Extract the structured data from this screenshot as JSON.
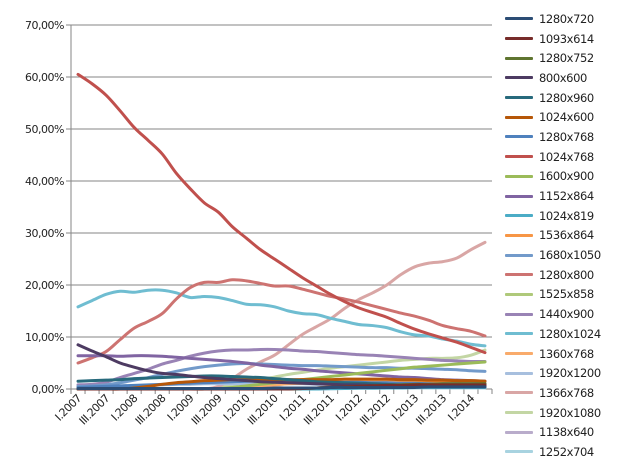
{
  "chart_data": {
    "type": "line",
    "title": "",
    "xlabel": "",
    "ylabel": "",
    "ylim": [
      0,
      70
    ],
    "y_ticks": [
      "0,00%",
      "10,00%",
      "20,00%",
      "30,00%",
      "40,00%",
      "50,00%",
      "60,00%",
      "70,00%"
    ],
    "grid": true,
    "legend": "right",
    "x_tick_labels": [
      "I.2007",
      "III.2007",
      "I.2008",
      "III.2008",
      "I.2009",
      "III.2009",
      "I.2010",
      "III.2010",
      "I.2011",
      "III.2011",
      "I.2012",
      "III.2012",
      "I.2013",
      "III.2013",
      "I.2014"
    ],
    "categories": [
      "I.2007",
      "II.2007",
      "III.2007",
      "IV.2007",
      "I.2008",
      "II.2008",
      "III.2008",
      "IV.2008",
      "I.2009",
      "II.2009",
      "III.2009",
      "IV.2009",
      "I.2010",
      "II.2010",
      "III.2010",
      "IV.2010",
      "I.2011",
      "II.2011",
      "III.2011",
      "IV.2011",
      "I.2012",
      "II.2012",
      "III.2012",
      "IV.2012",
      "I.2013",
      "II.2013",
      "III.2013",
      "IV.2013",
      "I.2014",
      "II.2014"
    ],
    "series": [
      {
        "name": "1280x720",
        "color": "#2C4D75",
        "values": [
          0.1,
          0.1,
          0.1,
          0.1,
          0.1,
          0.1,
          0.1,
          0.1,
          0.1,
          0.1,
          0.1,
          0.1,
          0.1,
          0.1,
          0.2,
          0.2,
          0.2,
          0.2,
          0.3,
          0.3,
          0.3,
          0.3,
          0.3,
          0.3,
          0.3,
          0.4,
          0.4,
          0.4,
          0.4,
          0.4
        ]
      },
      {
        "name": "1093x614",
        "color": "#772C2A",
        "values": [
          0,
          0,
          0,
          0,
          0,
          0,
          0,
          0,
          0,
          0,
          0,
          0,
          0,
          0,
          0,
          0,
          0.1,
          0.2,
          0.3,
          0.4,
          0.5,
          0.6,
          0.7,
          0.7,
          0.8,
          0.8,
          0.8,
          0.8,
          0.8,
          0.8
        ]
      },
      {
        "name": "1280x752",
        "color": "#5F7530",
        "values": [
          0,
          0,
          0,
          0,
          0,
          0,
          0,
          0,
          0,
          0,
          0,
          0,
          0,
          0,
          0,
          0,
          0.1,
          0.2,
          0.3,
          0.4,
          0.5,
          0.6,
          0.7,
          0.8,
          0.9,
          0.9,
          1.0,
          1.0,
          1.0,
          1.0
        ]
      },
      {
        "name": "800x600",
        "color": "#4D3B62",
        "values": [
          8.5,
          7.3,
          6.2,
          5.0,
          4.2,
          3.5,
          3.0,
          2.8,
          2.5,
          2.2,
          2.0,
          1.8,
          1.6,
          1.4,
          1.3,
          1.2,
          1.1,
          1.0,
          0.9,
          0.8,
          0.8,
          0.7,
          0.7,
          0.6,
          0.6,
          0.6,
          0.5,
          0.5,
          0.5,
          0.5
        ]
      },
      {
        "name": "1280x960",
        "color": "#276A7C",
        "values": [
          1.5,
          1.6,
          1.7,
          1.8,
          2.0,
          2.1,
          2.2,
          2.3,
          2.4,
          2.5,
          2.5,
          2.4,
          2.3,
          2.2,
          2.0,
          1.8,
          1.6,
          1.4,
          1.3,
          1.2,
          1.1,
          1.0,
          0.9,
          0.8,
          0.8,
          0.7,
          0.7,
          0.6,
          0.6,
          0.6
        ]
      },
      {
        "name": "1024x600",
        "color": "#B65708",
        "values": [
          0,
          0,
          0,
          0,
          0.2,
          0.5,
          0.9,
          1.2,
          1.4,
          1.6,
          1.7,
          1.8,
          1.8,
          1.8,
          1.8,
          1.8,
          1.8,
          1.8,
          1.8,
          1.9,
          1.9,
          1.9,
          1.9,
          1.8,
          1.8,
          1.7,
          1.7,
          1.6,
          1.6,
          1.5
        ]
      },
      {
        "name": "1280x768",
        "color": "#4F81BD",
        "values": [
          0.3,
          0.4,
          0.5,
          0.6,
          0.7,
          0.8,
          0.9,
          1.0,
          1.1,
          1.2,
          1.3,
          1.4,
          1.5,
          1.5,
          1.5,
          1.5,
          1.5,
          1.4,
          1.4,
          1.3,
          1.3,
          1.2,
          1.2,
          1.1,
          1.1,
          1.0,
          1.0,
          1.0,
          1.0,
          1.0
        ]
      },
      {
        "name": "1024x768",
        "color": "#C0504D",
        "values": [
          60.5,
          58.7,
          56.5,
          53.5,
          50.3,
          47.8,
          45.2,
          41.5,
          38.5,
          35.8,
          34.0,
          31.2,
          29.0,
          26.8,
          25.0,
          23.2,
          21.4,
          19.8,
          18.2,
          16.8,
          15.6,
          14.7,
          13.8,
          12.6,
          11.5,
          10.6,
          9.8,
          9.0,
          8.0,
          7.0
        ]
      },
      {
        "name": "1600x900",
        "color": "#9BBB59",
        "values": [
          0,
          0,
          0,
          0,
          0,
          0,
          0,
          0,
          0,
          0,
          0.1,
          0.3,
          0.6,
          0.9,
          1.2,
          1.5,
          1.8,
          2.1,
          2.4,
          2.7,
          3.0,
          3.3,
          3.6,
          3.9,
          4.2,
          4.4,
          4.6,
          4.8,
          5.0,
          5.2
        ]
      },
      {
        "name": "1152x864",
        "color": "#8064A2",
        "values": [
          6.4,
          6.4,
          6.4,
          6.3,
          6.4,
          6.4,
          6.3,
          6.1,
          5.9,
          5.7,
          5.5,
          5.3,
          5.0,
          4.6,
          4.3,
          4.0,
          3.8,
          3.5,
          3.3,
          3.1,
          2.9,
          2.7,
          2.5,
          2.3,
          2.2,
          2.0,
          1.8,
          1.7,
          1.6,
          1.5
        ]
      },
      {
        "name": "1024x819",
        "color": "#4BACC6",
        "values": [
          0,
          0,
          0,
          0,
          0,
          0,
          0,
          0,
          0,
          0,
          0,
          0,
          0,
          0,
          0,
          0,
          0,
          0,
          0.1,
          0.1,
          0.2,
          0.2,
          0.2,
          0.2,
          0.3,
          0.3,
          0.3,
          0.3,
          0.3,
          0.3
        ]
      },
      {
        "name": "1536x864",
        "color": "#F79646",
        "values": [
          0,
          0,
          0,
          0,
          0,
          0,
          0,
          0,
          0,
          0,
          0,
          0,
          0,
          0,
          0,
          0,
          0.1,
          0.2,
          0.4,
          0.6,
          0.8,
          1.0,
          1.1,
          1.2,
          1.3,
          1.4,
          1.4,
          1.5,
          1.5,
          1.5
        ]
      },
      {
        "name": "1680x1050",
        "color": "#729ACA",
        "values": [
          0.5,
          0.6,
          0.8,
          1.2,
          1.7,
          2.2,
          2.8,
          3.4,
          3.9,
          4.3,
          4.6,
          4.8,
          4.9,
          4.8,
          4.7,
          4.6,
          4.5,
          4.5,
          4.4,
          4.3,
          4.2,
          4.1,
          4.1,
          4.0,
          4.0,
          3.9,
          3.8,
          3.7,
          3.5,
          3.4
        ]
      },
      {
        "name": "1280x800",
        "color": "#CD7371",
        "values": [
          5.0,
          6.0,
          7.2,
          9.5,
          11.7,
          13.0,
          14.5,
          17.3,
          19.5,
          20.5,
          20.5,
          21.0,
          20.8,
          20.3,
          19.8,
          19.8,
          19.2,
          18.5,
          17.8,
          17.3,
          16.7,
          16.0,
          15.3,
          14.6,
          14.0,
          13.2,
          12.2,
          11.6,
          11.1,
          10.2
        ]
      },
      {
        "name": "1525x858",
        "color": "#AFC97A",
        "values": [
          0,
          0,
          0,
          0,
          0,
          0,
          0,
          0,
          0,
          0,
          0,
          0,
          0,
          0,
          0,
          0,
          0,
          0.1,
          0.2,
          0.3,
          0.4,
          0.5,
          0.6,
          0.7,
          0.7,
          0.8,
          0.8,
          0.8,
          0.8,
          0.8
        ]
      },
      {
        "name": "1440x900",
        "color": "#9983B5",
        "values": [
          0.8,
          0.9,
          1.3,
          2.2,
          3.0,
          3.8,
          4.8,
          5.5,
          6.3,
          6.9,
          7.3,
          7.5,
          7.5,
          7.6,
          7.6,
          7.5,
          7.3,
          7.2,
          7.0,
          6.8,
          6.6,
          6.5,
          6.3,
          6.1,
          5.9,
          5.7,
          5.5,
          5.4,
          5.3,
          5.3
        ]
      },
      {
        "name": "1280x1024",
        "color": "#6FBDD1",
        "values": [
          15.8,
          17.0,
          18.2,
          18.8,
          18.6,
          19.0,
          19.0,
          18.5,
          17.6,
          17.8,
          17.6,
          17.0,
          16.3,
          16.2,
          15.8,
          15.0,
          14.5,
          14.3,
          13.6,
          13.0,
          12.4,
          12.2,
          11.8,
          11.0,
          10.4,
          10.2,
          9.6,
          9.2,
          8.6,
          8.3
        ]
      },
      {
        "name": "1360x768",
        "color": "#F9AB6B",
        "values": [
          0,
          0,
          0,
          0,
          0,
          0,
          0,
          0,
          0,
          0,
          0.1,
          0.2,
          0.4,
          0.6,
          0.8,
          1.0,
          1.1,
          1.2,
          1.3,
          1.3,
          1.4,
          1.4,
          1.4,
          1.4,
          1.5,
          1.5,
          1.5,
          1.5,
          1.5,
          1.5
        ]
      },
      {
        "name": "1920x1200",
        "color": "#A7BFDE",
        "values": [
          0.2,
          0.3,
          0.4,
          0.5,
          0.6,
          0.7,
          0.8,
          0.9,
          0.9,
          1.0,
          1.0,
          1.0,
          1.0,
          1.0,
          1.0,
          1.0,
          1.0,
          0.9,
          0.9,
          0.9,
          0.9,
          0.9,
          0.8,
          0.8,
          0.8,
          0.8,
          0.8,
          0.7,
          0.7,
          0.7
        ]
      },
      {
        "name": "1366x768",
        "color": "#D9A6A5",
        "values": [
          0,
          0,
          0,
          0,
          0,
          0,
          0,
          0,
          0,
          0,
          0.5,
          2.0,
          3.8,
          5.2,
          6.5,
          8.5,
          10.5,
          12.0,
          13.5,
          15.5,
          17.2,
          18.5,
          20.0,
          22.0,
          23.5,
          24.2,
          24.5,
          25.2,
          26.8,
          28.2
        ]
      },
      {
        "name": "1920x1080",
        "color": "#C3D6A4",
        "values": [
          0,
          0,
          0,
          0,
          0,
          0,
          0,
          0,
          0,
          0,
          0.3,
          0.8,
          1.3,
          1.8,
          2.3,
          2.8,
          3.2,
          3.6,
          4.0,
          4.3,
          4.6,
          4.9,
          5.2,
          5.5,
          5.7,
          5.9,
          5.9,
          6.0,
          6.5,
          7.5
        ]
      },
      {
        "name": "1138x640",
        "color": "#B9ACCB",
        "values": [
          0,
          0,
          0,
          0,
          0,
          0,
          0,
          0,
          0,
          0,
          0,
          0,
          0,
          0,
          0,
          0,
          0,
          0,
          0.1,
          0.1,
          0.2,
          0.2,
          0.3,
          0.3,
          0.3,
          0.4,
          0.4,
          0.4,
          0.4,
          0.4
        ]
      },
      {
        "name": "1252x704",
        "color": "#A8D3E0",
        "values": [
          0,
          0,
          0,
          0,
          0,
          0,
          0,
          0,
          0,
          0,
          0,
          0,
          0,
          0,
          0,
          0,
          0,
          0,
          0,
          0.1,
          0.1,
          0.1,
          0.2,
          0.2,
          0.2,
          0.2,
          0.2,
          0.2,
          0.2,
          0.2
        ]
      }
    ]
  }
}
